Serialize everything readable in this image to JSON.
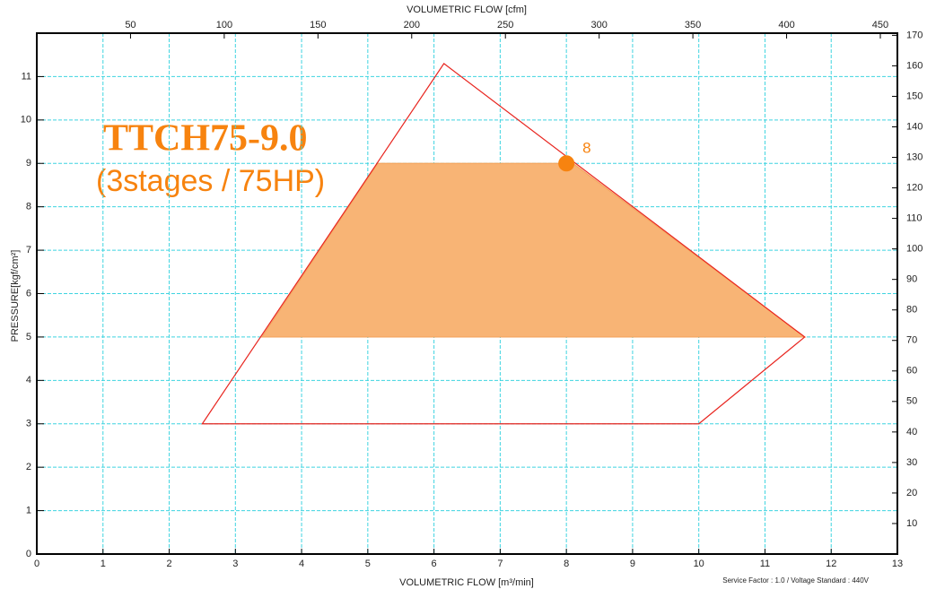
{
  "chart_data": {
    "type": "polygon",
    "xlabel": "VOLUMETRIC FLOW [m³/min]",
    "x2label": "VOLUMETRIC FLOW [cfm]",
    "ylabel": "PRESSURE[kgf/cm²]",
    "xlim": [
      0,
      13
    ],
    "xticks": [
      0,
      1,
      2,
      3,
      4,
      5,
      6,
      7,
      8,
      9,
      10,
      11,
      12,
      13
    ],
    "x2lim": [
      0,
      459.1
    ],
    "x2ticks": [
      50,
      100,
      150,
      200,
      250,
      300,
      350,
      400,
      450
    ],
    "ylim": [
      0,
      12
    ],
    "yticks": [
      0,
      1,
      2,
      3,
      4,
      5,
      6,
      7,
      8,
      9,
      10,
      11
    ],
    "y2lim": [
      0,
      170.7
    ],
    "y2ticks": [
      10,
      20,
      30,
      40,
      50,
      60,
      70,
      80,
      90,
      100,
      110,
      120,
      130,
      140,
      150,
      160,
      170
    ],
    "grid": true,
    "regions": [
      {
        "color": "#e8251f",
        "fill": "none",
        "x": [
          2.5,
          6.15,
          11.6,
          10,
          2.5
        ],
        "y": [
          3,
          11.3,
          5,
          3,
          3
        ]
      },
      {
        "color": "#f4a55f",
        "fill": "#f8b475",
        "x": [
          3.4,
          5.15,
          8.1,
          11.6
        ],
        "y": [
          5,
          9,
          9,
          5
        ]
      }
    ],
    "points": [
      {
        "x": 8,
        "y": 9,
        "label": "8",
        "color": "#f7830f"
      }
    ],
    "annotations": [
      "TTCH75-9.0",
      "(3stages / 75HP)"
    ],
    "footnote": "Service Factor : 1.0 / Voltage Standard : 440V"
  }
}
